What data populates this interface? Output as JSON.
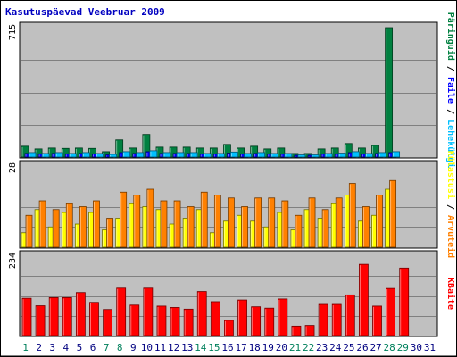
{
  "chart_data": [
    {
      "panel": "pages-files-hits",
      "type": "bar",
      "title": "Kasutuspäevad Veebruar 2009",
      "y_max_label": "715",
      "ylim": [
        0,
        715
      ],
      "grid": true,
      "side_legend": [
        "Päringuid",
        "Faile",
        "Lehekülgi"
      ],
      "side_legend_separator": " / ",
      "categories": [
        "1",
        "2",
        "3",
        "4",
        "5",
        "6",
        "7",
        "8",
        "9",
        "10",
        "11",
        "12",
        "13",
        "14",
        "15",
        "16",
        "17",
        "18",
        "19",
        "20",
        "21",
        "22",
        "23",
        "24",
        "25",
        "26",
        "27",
        "28",
        "29",
        "30",
        "31"
      ],
      "series": [
        {
          "name": "Päringuid",
          "color": "#008040",
          "values": [
            60,
            45,
            50,
            48,
            50,
            48,
            30,
            95,
            50,
            125,
            55,
            55,
            55,
            50,
            50,
            70,
            50,
            60,
            45,
            50,
            20,
            20,
            45,
            50,
            75,
            50,
            65,
            715,
            0,
            0,
            0
          ]
        },
        {
          "name": "Faile",
          "color": "#0000ff",
          "values": [
            20,
            18,
            20,
            18,
            20,
            18,
            12,
            25,
            20,
            30,
            20,
            20,
            20,
            18,
            18,
            22,
            18,
            20,
            18,
            18,
            10,
            10,
            18,
            18,
            25,
            18,
            20,
            25,
            0,
            0,
            0
          ]
        },
        {
          "name": "Lehekülgi",
          "color": "#00c0ff",
          "values": [
            25,
            20,
            25,
            20,
            25,
            20,
            15,
            30,
            25,
            35,
            25,
            25,
            25,
            20,
            20,
            28,
            20,
            25,
            20,
            20,
            12,
            12,
            20,
            22,
            30,
            20,
            25,
            30,
            0,
            0,
            0
          ]
        }
      ]
    },
    {
      "panel": "visits-sites",
      "type": "bar",
      "y_max_label": "28",
      "ylim": [
        0,
        28
      ],
      "grid": true,
      "side_legend": [
        "Külastusi",
        "Arvuteid"
      ],
      "side_legend_separator": " / ",
      "series": [
        {
          "name": "Külastusi",
          "color": "#ffff00",
          "values": [
            5,
            13,
            7,
            12,
            8,
            12,
            6,
            10,
            15,
            14,
            13,
            8,
            10,
            13,
            5,
            9,
            11,
            9,
            7,
            12,
            6,
            13,
            10,
            15,
            18,
            9,
            11,
            20,
            0,
            0,
            0
          ]
        },
        {
          "name": "Arvuteid",
          "color": "#ff8000",
          "values": [
            11,
            16,
            13,
            15,
            14,
            16,
            10,
            19,
            18,
            20,
            16,
            16,
            14,
            19,
            18,
            17,
            14,
            17,
            17,
            16,
            11,
            17,
            13,
            17,
            22,
            14,
            18,
            23,
            0,
            0,
            0
          ]
        }
      ]
    },
    {
      "panel": "kbytes",
      "type": "bar",
      "y_max_label": "234",
      "ylim": [
        0,
        234
      ],
      "grid": true,
      "side_legend": [
        "KBaite"
      ],
      "series": [
        {
          "name": "KBaite",
          "color": "#ff0000",
          "values": [
            110,
            88,
            112,
            112,
            127,
            98,
            77,
            140,
            90,
            140,
            87,
            83,
            78,
            130,
            100,
            45,
            105,
            85,
            81,
            108,
            28,
            30,
            92,
            92,
            120,
            210,
            87,
            139,
            199,
            0,
            0
          ]
        }
      ]
    }
  ],
  "x_label_colors": {
    "weekday": "#000080",
    "weekend": "#00805c"
  },
  "weekend_days": [
    "1",
    "7",
    "8",
    "14",
    "15",
    "21",
    "22",
    "28",
    "29"
  ],
  "colors": {
    "title": "#0000c0",
    "panel_bg": "#c0c0c0",
    "gridline": "#808080"
  }
}
